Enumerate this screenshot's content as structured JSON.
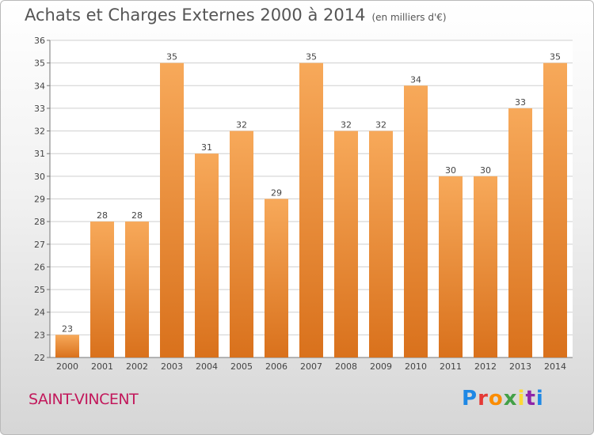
{
  "title": "Achats et Charges Externes 2000 à 2014",
  "subtitle": "(en milliers d'€)",
  "footer_label": "SAINT-VINCENT",
  "logo": {
    "letters": [
      "P",
      "r",
      "o",
      "x",
      "i",
      "t",
      "i"
    ],
    "colors": [
      "#1e88e5",
      "#e53935",
      "#fb8c00",
      "#43a047",
      "#fdd835",
      "#8e24aa",
      "#1e88e5"
    ]
  },
  "colors": {
    "bar_top": "#f7a95a",
    "bar_bottom": "#d9711c",
    "grid": "#cfcfcf",
    "axis": "#777777"
  },
  "chart_data": {
    "type": "bar",
    "categories": [
      "2000",
      "2001",
      "2002",
      "2003",
      "2004",
      "2005",
      "2006",
      "2007",
      "2008",
      "2009",
      "2010",
      "2011",
      "2012",
      "2013",
      "2014"
    ],
    "values": [
      23,
      28,
      28,
      35,
      31,
      32,
      29,
      35,
      32,
      32,
      34,
      30,
      30,
      33,
      35
    ],
    "title": "Achats et Charges Externes 2000 à 2014",
    "ylim": [
      22,
      36
    ],
    "yticks": [
      22,
      23,
      24,
      25,
      26,
      27,
      28,
      29,
      30,
      31,
      32,
      33,
      34,
      35,
      36
    ],
    "grid": true
  }
}
